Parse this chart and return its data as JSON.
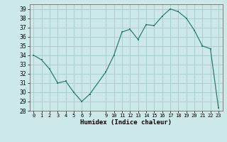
{
  "x": [
    0,
    1,
    2,
    3,
    4,
    5,
    6,
    7,
    9,
    10,
    11,
    12,
    13,
    14,
    15,
    16,
    17,
    18,
    19,
    20,
    21,
    22,
    23
  ],
  "y": [
    34.0,
    33.5,
    32.5,
    31.0,
    31.2,
    30.0,
    29.0,
    29.8,
    32.2,
    34.0,
    36.5,
    36.8,
    35.7,
    37.3,
    37.2,
    38.2,
    39.0,
    38.7,
    38.0,
    36.7,
    35.0,
    34.7,
    28.3
  ],
  "xlabel": "Humidex (Indice chaleur)",
  "xlim": [
    -0.5,
    23.5
  ],
  "ylim": [
    28,
    39.5
  ],
  "yticks": [
    28,
    29,
    30,
    31,
    32,
    33,
    34,
    35,
    36,
    37,
    38,
    39
  ],
  "xticks": [
    0,
    1,
    2,
    3,
    4,
    5,
    6,
    7,
    9,
    10,
    11,
    12,
    13,
    14,
    15,
    16,
    17,
    18,
    19,
    20,
    21,
    22,
    23
  ],
  "xtick_labels": [
    "0",
    "1",
    "2",
    "3",
    "4",
    "5",
    "6",
    "7",
    "9",
    "10",
    "11",
    "12",
    "13",
    "14",
    "15",
    "16",
    "17",
    "18",
    "19",
    "20",
    "21",
    "22",
    "23"
  ],
  "line_color": "#2e7d6e",
  "bg_color": "#cce8e8",
  "grid_color": "#aacece"
}
